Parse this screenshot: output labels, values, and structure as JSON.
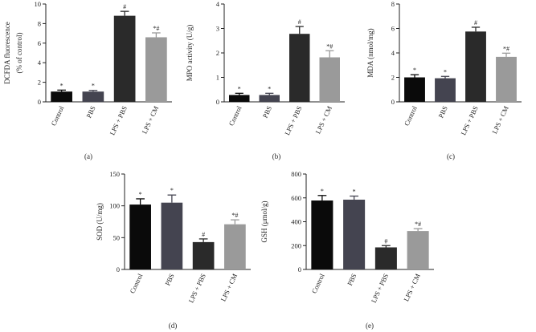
{
  "chart_data": [
    {
      "type": "bar",
      "panel_label": "(a)",
      "ylabel_line1": "DCFDA fluorescence",
      "ylabel_line2": "(% of control)",
      "ylim": [
        0,
        10
      ],
      "yticks": [
        0,
        2,
        4,
        6,
        8,
        10
      ],
      "categories": [
        "Control",
        "PBS",
        "LPS + PBS",
        "LPS + CM"
      ],
      "values": [
        1.05,
        1.05,
        8.8,
        6.6
      ],
      "errors": [
        0.15,
        0.12,
        0.45,
        0.45
      ],
      "significance": [
        "*",
        "*",
        "#",
        "*#"
      ]
    },
    {
      "type": "bar",
      "panel_label": "(b)",
      "ylabel_line1": "MPO activity (U/g)",
      "ylim": [
        0,
        4
      ],
      "yticks": [
        0,
        1,
        2,
        3,
        4
      ],
      "categories": [
        "Control",
        "PBS",
        "LPS + PBS",
        "LPS + CM"
      ],
      "values": [
        0.28,
        0.28,
        2.78,
        1.82
      ],
      "errors": [
        0.07,
        0.07,
        0.3,
        0.27
      ],
      "significance": [
        "*",
        "*",
        "#",
        "*#"
      ]
    },
    {
      "type": "bar",
      "panel_label": "(c)",
      "ylabel_line1": "MDA (nmol/mg)",
      "ylim": [
        0,
        8
      ],
      "yticks": [
        0,
        2,
        4,
        6,
        8
      ],
      "categories": [
        "Control",
        "PBS",
        "LPS + PBS",
        "LPS + CM"
      ],
      "values": [
        2.0,
        1.93,
        5.75,
        3.68
      ],
      "errors": [
        0.22,
        0.15,
        0.35,
        0.3
      ],
      "significance": [
        "*",
        "*",
        "#",
        "*#"
      ]
    },
    {
      "type": "bar",
      "panel_label": "(d)",
      "ylabel_line1": "SOD (U/mg)",
      "ylim": [
        0,
        150
      ],
      "yticks": [
        0,
        50,
        100,
        150
      ],
      "categories": [
        "Control",
        "PBS",
        "LPS + PBS",
        "LPS + CM"
      ],
      "values": [
        102,
        105,
        43,
        71
      ],
      "errors": [
        9,
        12,
        5,
        7
      ],
      "significance": [
        "*",
        "*",
        "#",
        "*#"
      ]
    },
    {
      "type": "bar",
      "panel_label": "(e)",
      "ylabel_line1": "GSH (μmol/g)",
      "ylim": [
        0,
        800
      ],
      "yticks": [
        0,
        200,
        400,
        600,
        800
      ],
      "categories": [
        "Control",
        "PBS",
        "LPS + PBS",
        "LPS + CM"
      ],
      "values": [
        578,
        585,
        185,
        322
      ],
      "errors": [
        42,
        30,
        15,
        20
      ],
      "significance": [
        "*",
        "*",
        "#",
        "*#"
      ]
    }
  ],
  "colors": {
    "bars": [
      "#0a0a0a",
      "#444450",
      "#2a2a2a",
      "#9a9a9a"
    ],
    "axis": "#222222"
  }
}
